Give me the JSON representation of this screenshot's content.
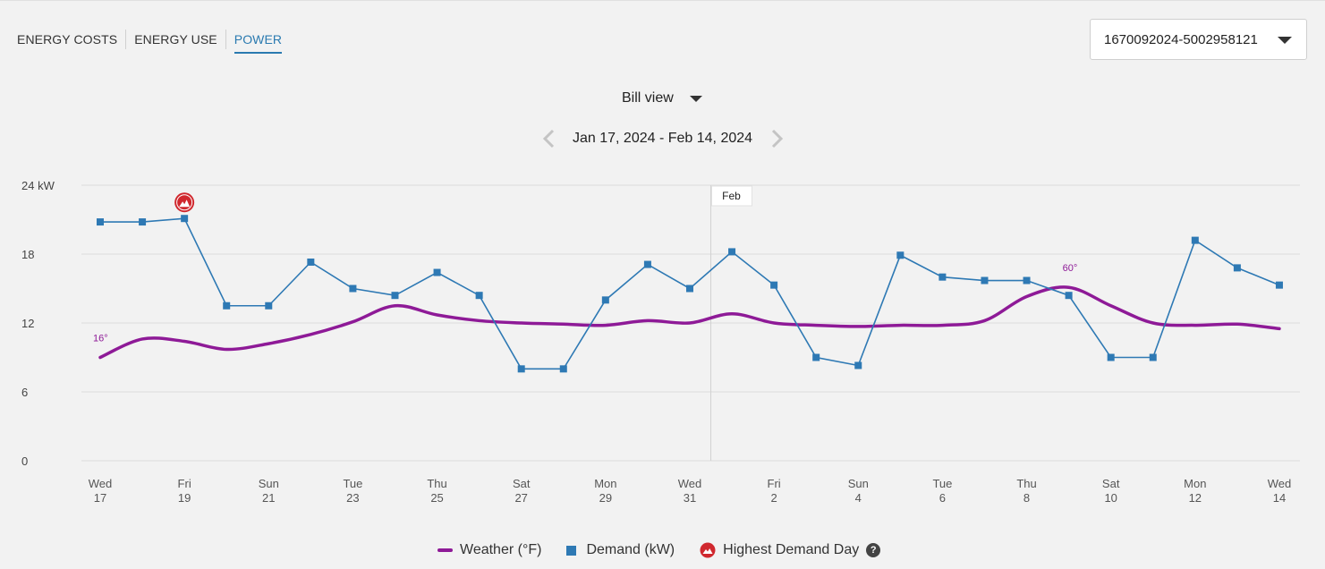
{
  "tabs": [
    {
      "label": "ENERGY COSTS",
      "active": false
    },
    {
      "label": "ENERGY USE",
      "active": false
    },
    {
      "label": "POWER",
      "active": true
    }
  ],
  "account_select": {
    "value": "1670092024-5002958121"
  },
  "view_select": {
    "value": "Bill view"
  },
  "date_range": {
    "label": "Jan 17, 2024 - Feb 14, 2024"
  },
  "legend": {
    "weather": "Weather (°F)",
    "demand": "Demand (kW)",
    "highest": "Highest Demand Day",
    "help": "?"
  },
  "colors": {
    "weather": "#8e1a97",
    "demand": "#2e79b4",
    "highest_marker": "#d0282e",
    "grid": "#dcdcdc"
  },
  "chart_data": {
    "type": "line",
    "ylim": [
      0,
      24
    ],
    "y_unit": "kW",
    "y_ticks": [
      "0",
      "6",
      "12",
      "18",
      "24 kW"
    ],
    "x": [
      "Jan 17",
      "Jan 18",
      "Jan 19",
      "Jan 20",
      "Jan 21",
      "Jan 22",
      "Jan 23",
      "Jan 24",
      "Jan 25",
      "Jan 26",
      "Jan 27",
      "Jan 28",
      "Jan 29",
      "Jan 30",
      "Jan 31",
      "Feb 1",
      "Feb 2",
      "Feb 3",
      "Feb 4",
      "Feb 5",
      "Feb 6",
      "Feb 7",
      "Feb 8",
      "Feb 9",
      "Feb 10",
      "Feb 11",
      "Feb 12",
      "Feb 13",
      "Feb 14"
    ],
    "x_tick_labels": [
      {
        "index": 0,
        "day": "Wed",
        "date": "17"
      },
      {
        "index": 2,
        "day": "Fri",
        "date": "19"
      },
      {
        "index": 4,
        "day": "Sun",
        "date": "21"
      },
      {
        "index": 6,
        "day": "Tue",
        "date": "23"
      },
      {
        "index": 8,
        "day": "Thu",
        "date": "25"
      },
      {
        "index": 10,
        "day": "Sat",
        "date": "27"
      },
      {
        "index": 12,
        "day": "Mon",
        "date": "29"
      },
      {
        "index": 14,
        "day": "Wed",
        "date": "31"
      },
      {
        "index": 16,
        "day": "Fri",
        "date": "2"
      },
      {
        "index": 18,
        "day": "Sun",
        "date": "4"
      },
      {
        "index": 20,
        "day": "Tue",
        "date": "6"
      },
      {
        "index": 22,
        "day": "Thu",
        "date": "8"
      },
      {
        "index": 24,
        "day": "Sat",
        "date": "10"
      },
      {
        "index": 26,
        "day": "Mon",
        "date": "12"
      },
      {
        "index": 28,
        "day": "Wed",
        "date": "14"
      }
    ],
    "month_marker": {
      "label": "Feb",
      "index": 14.5
    },
    "series": [
      {
        "name": "Demand (kW)",
        "kind": "line-markers",
        "values": [
          20.8,
          20.8,
          21.1,
          13.5,
          13.5,
          17.3,
          15.0,
          14.4,
          16.4,
          14.4,
          8.0,
          8.0,
          14.0,
          17.1,
          15.0,
          18.2,
          15.3,
          9.0,
          8.3,
          17.9,
          16.0,
          15.7,
          15.7,
          14.4,
          9.0,
          9.0,
          19.2,
          16.8,
          15.3
        ]
      },
      {
        "name": "Weather (°F)",
        "kind": "smooth-line",
        "values": [
          9.0,
          10.6,
          10.4,
          9.7,
          10.2,
          11.0,
          12.1,
          13.5,
          12.7,
          12.2,
          12.0,
          11.9,
          11.8,
          12.2,
          12.0,
          12.8,
          12.0,
          11.8,
          11.7,
          11.8,
          11.8,
          12.2,
          14.3,
          15.1,
          13.5,
          12.0,
          11.8,
          11.9,
          11.5
        ]
      }
    ],
    "annotations": [
      {
        "series": "Weather (°F)",
        "index": 0,
        "text": "16°"
      },
      {
        "series": "Weather (°F)",
        "index": 23,
        "text": "60°"
      }
    ],
    "highest_demand_index": 2
  }
}
